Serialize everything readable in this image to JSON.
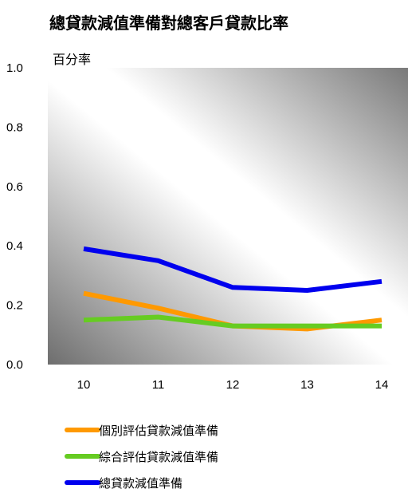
{
  "chart_data": {
    "type": "line",
    "title": "總貸款減值準備對總客戶貸款比率",
    "ylabel": "百分率",
    "xlabel": "",
    "x": [
      "10",
      "11",
      "12",
      "13",
      "14"
    ],
    "ylim": [
      0.0,
      1.0
    ],
    "yticks": [
      "0.0",
      "0.2",
      "0.4",
      "0.6",
      "0.8",
      "1.0"
    ],
    "grid": false,
    "legend_position": "bottom-left",
    "series": [
      {
        "name": "個別評估貸款減值準備",
        "color": "#ff9900",
        "values": [
          0.24,
          0.19,
          0.13,
          0.12,
          0.15
        ]
      },
      {
        "name": "綜合評估貸款減值準備",
        "color": "#66cc22",
        "values": [
          0.15,
          0.16,
          0.13,
          0.13,
          0.13
        ]
      },
      {
        "name": "總貸款減值準備",
        "color": "#0000ee",
        "values": [
          0.39,
          0.35,
          0.26,
          0.25,
          0.28
        ]
      }
    ]
  }
}
